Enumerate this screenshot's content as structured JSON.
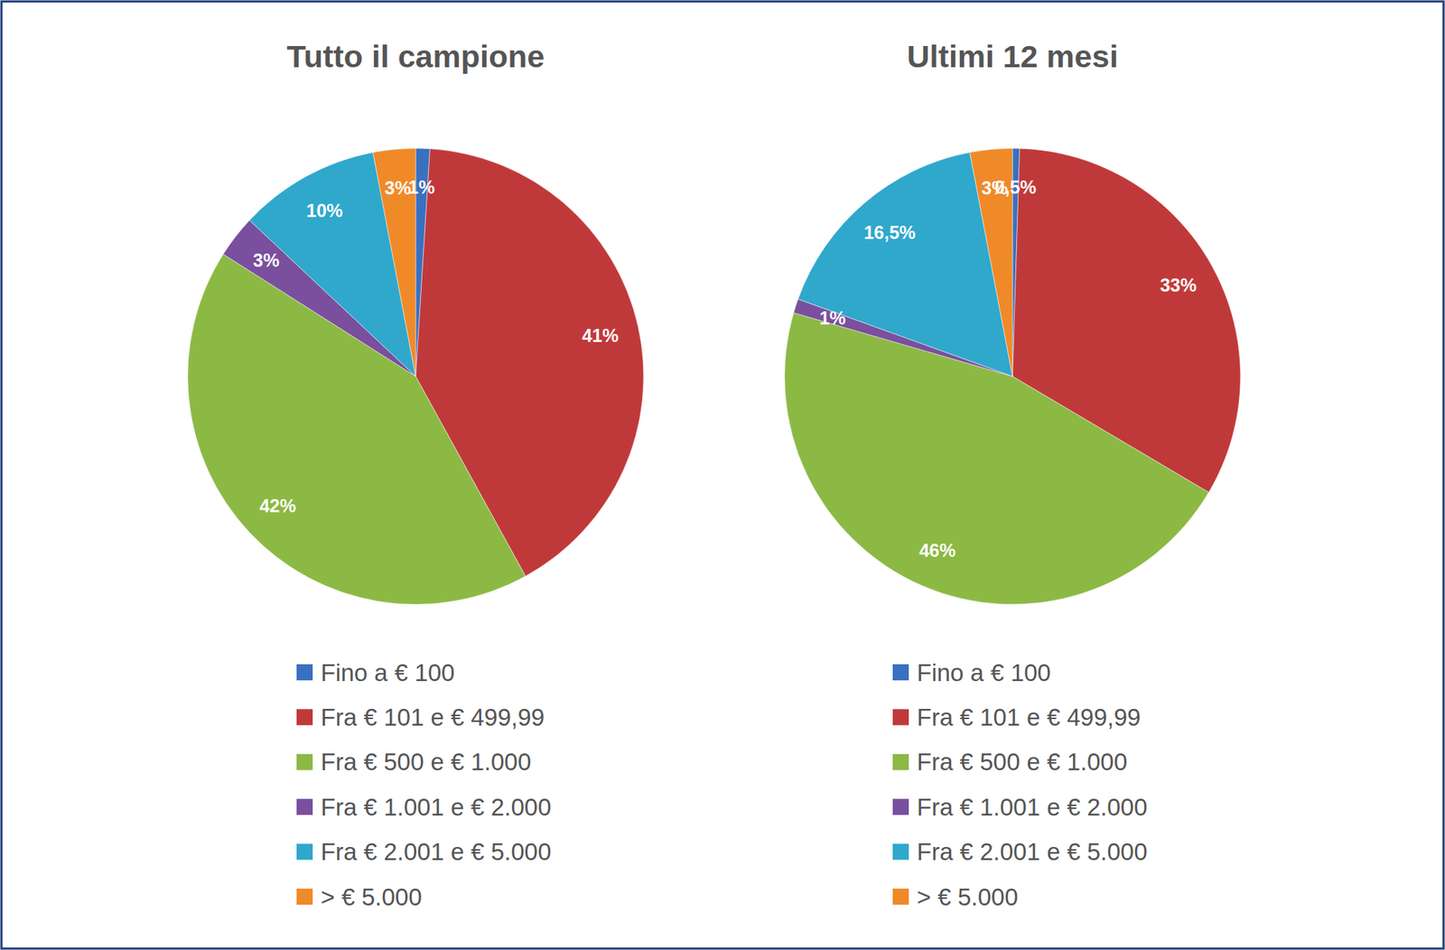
{
  "chart_data": [
    {
      "type": "pie",
      "title": "Tutto il campione",
      "categories": [
        "Fino a € 100",
        "Fra € 101 e € 499,99",
        "Fra € 500 e € 1.000",
        "Fra € 1.001 e € 2.000",
        "Fra € 2.001 e € 5.000",
        "> € 5.000"
      ],
      "values": [
        1,
        41,
        42,
        3,
        10,
        3
      ],
      "value_labels": [
        "1%",
        "41%",
        "42%",
        "3%",
        "10%",
        "3%"
      ],
      "colors": [
        "#3a70c0",
        "#c0393a",
        "#8cb944",
        "#7a4f9e",
        "#2fa8cc",
        "#f08a28"
      ],
      "data_labels": true,
      "legend": "bottom"
    },
    {
      "type": "pie",
      "title": "Ultimi 12 mesi",
      "categories": [
        "Fino a € 100",
        "Fra € 101 e € 499,99",
        "Fra € 500 e € 1.000",
        "Fra € 1.001 e € 2.000",
        "Fra € 2.001 e € 5.000",
        "> € 5.000"
      ],
      "values": [
        0.5,
        33,
        46,
        1,
        16.5,
        3
      ],
      "value_labels": [
        "0,5%",
        "33%",
        "46%",
        "1%",
        "16,5%",
        "3%"
      ],
      "colors": [
        "#3a70c0",
        "#c0393a",
        "#8cb944",
        "#7a4f9e",
        "#2fa8cc",
        "#f08a28"
      ],
      "data_labels": true,
      "legend": "bottom"
    }
  ]
}
